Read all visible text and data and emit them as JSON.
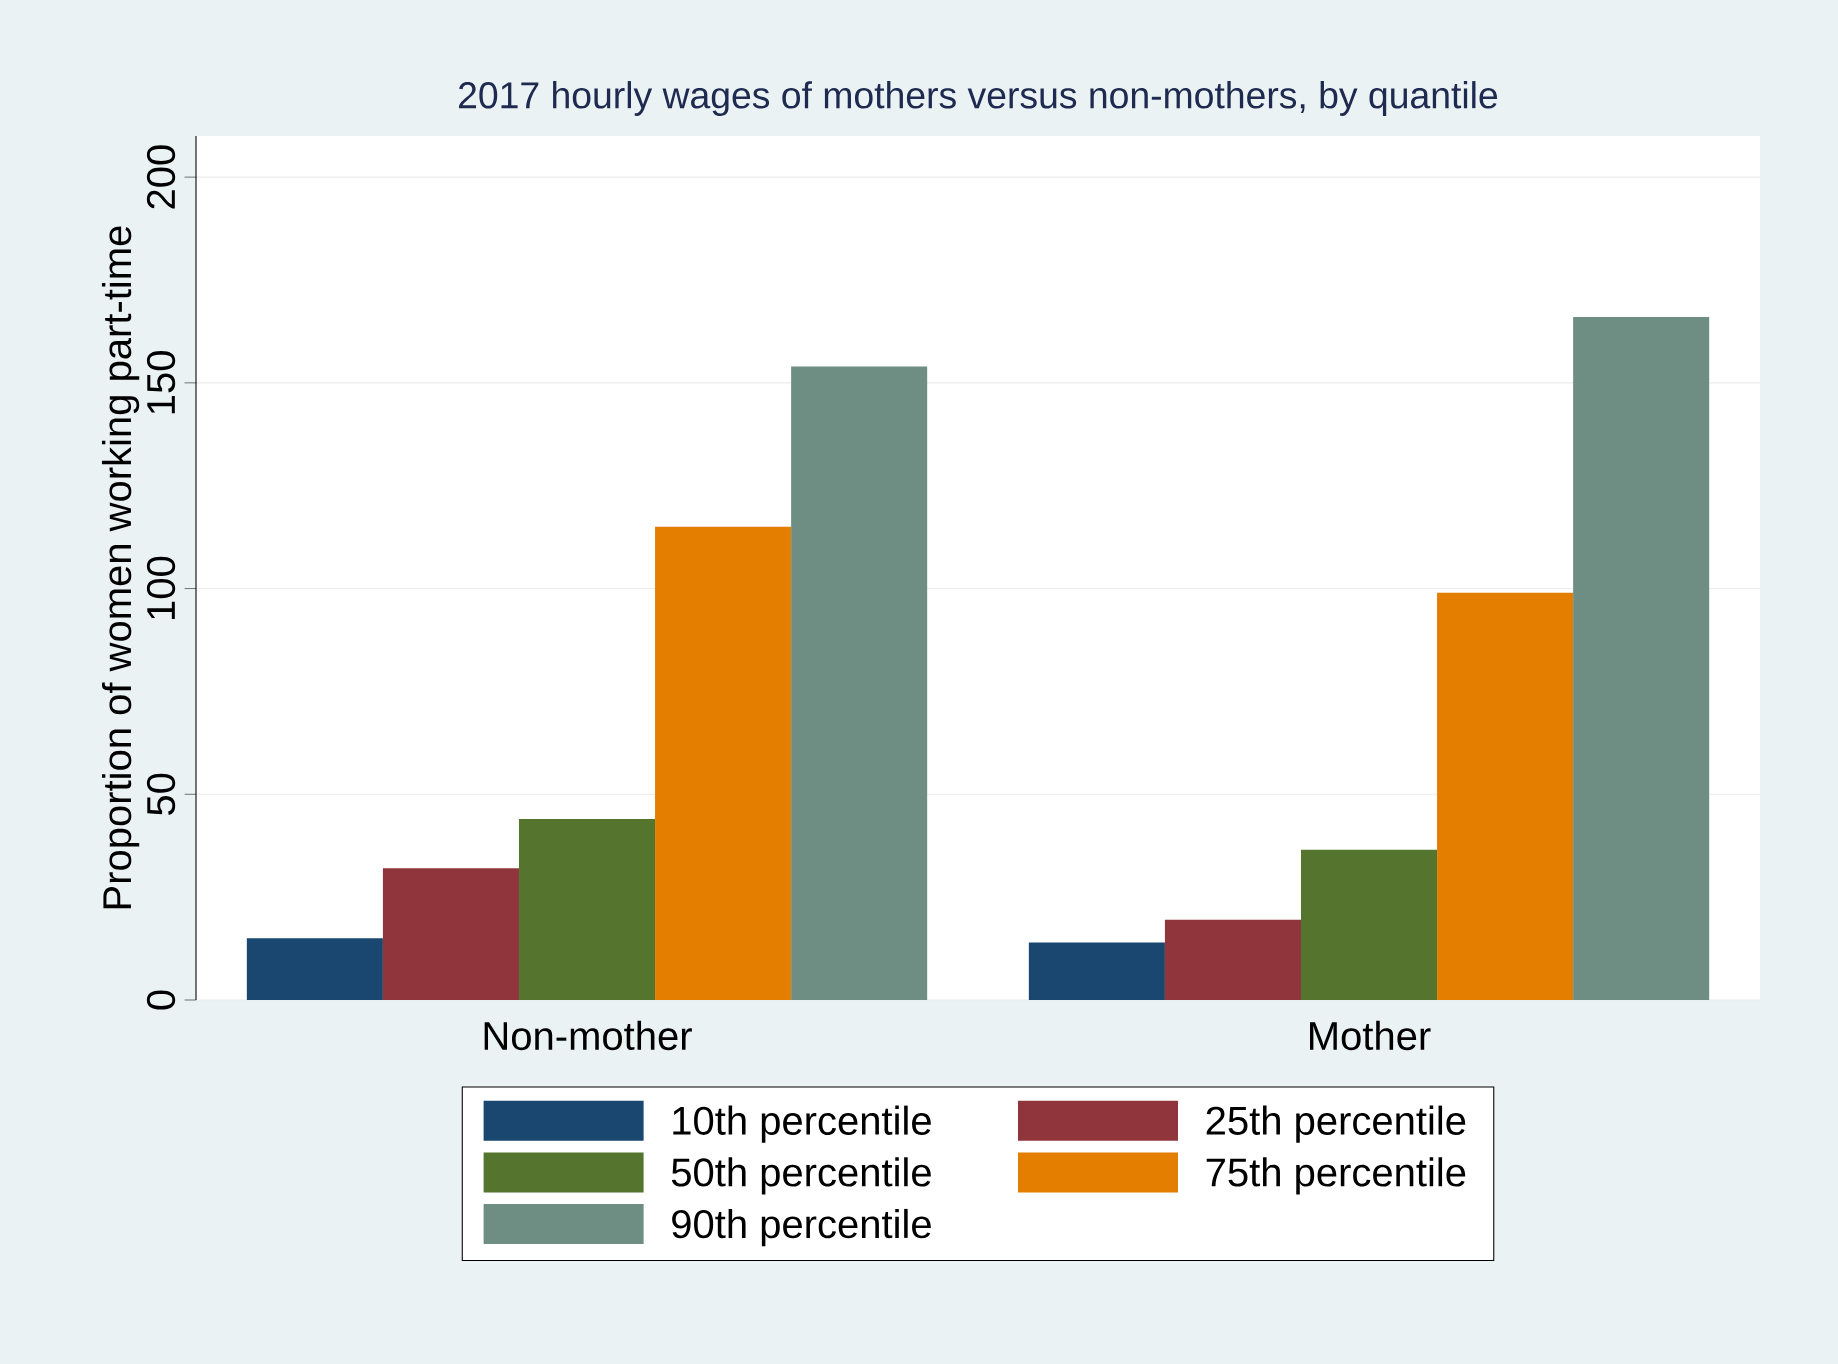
{
  "chart_data": {
    "type": "bar",
    "title": "2017 hourly wages of mothers versus non-mothers, by quantile",
    "ylabel": "Proportion of women working part-time",
    "categories": [
      "Non-mother",
      "Mother"
    ],
    "series": [
      {
        "name": "10th percentile",
        "color": "#1a476f",
        "values": [
          15,
          14
        ]
      },
      {
        "name": "25th percentile",
        "color": "#90353b",
        "values": [
          32,
          19.5
        ]
      },
      {
        "name": "50th percentile",
        "color": "#55752f",
        "values": [
          44,
          36.5
        ]
      },
      {
        "name": "75th percentile",
        "color": "#e37e00",
        "values": [
          115,
          99
        ]
      },
      {
        "name": "90th percentile",
        "color": "#6e8e84",
        "values": [
          154,
          166
        ]
      }
    ],
    "ylim": [
      0,
      210
    ],
    "yticks": [
      0,
      50,
      100,
      150,
      200
    ],
    "grid": "y",
    "legend": "bottom"
  }
}
